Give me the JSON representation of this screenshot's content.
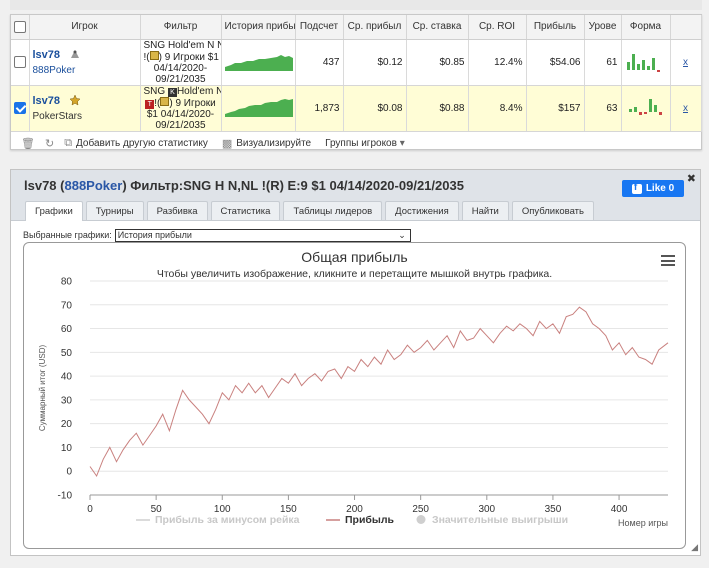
{
  "table": {
    "headers": [
      "Игрок",
      "Фильтр",
      "История прибы",
      "Подсчет",
      "Ср. прибыл",
      "Ср. ставка",
      "Ср. ROI",
      "Прибыль",
      "Урове",
      "Форма"
    ],
    "rows": [
      {
        "player": "lsv78",
        "site": "888Poker",
        "filter": [
          "SNG Hold'em N NL",
          "!(",
          ") 9 Игроки $1",
          "04/14/2020-",
          "09/21/2035"
        ],
        "count": "437",
        "avg_profit": "$0.12",
        "avg_stake": "$0.85",
        "roi": "12.4%",
        "profit": "$54.06",
        "level": "61",
        "link": "x",
        "checked": false
      },
      {
        "player": "lsv78",
        "site": "PokerStars",
        "filter": [
          "SNG ",
          "Hold'em N NL",
          "!(",
          ") 9 Игроки",
          "$1 04/14/2020-",
          "09/21/2035"
        ],
        "count": "1,873",
        "avg_profit": "$0.08",
        "avg_stake": "$0.88",
        "roi": "8.4%",
        "profit": "$157",
        "level": "63",
        "link": "x",
        "checked": true
      }
    ]
  },
  "toolbar": {
    "add_stats": "Добавить другую статистику",
    "visualize": "Визуализируйте",
    "groups": "Группы игроков"
  },
  "graph_panel": {
    "title_player": "lsv78 (",
    "title_site": "888Poker",
    "title_rest": ") Фильтр:SNG H N,NL !(R) E:9 $1 04/14/2020-09/21/2035",
    "like_label": "Like 0",
    "tabs": [
      "Графики",
      "Турниры",
      "Разбивка",
      "Статистика",
      "Таблицы лидеров",
      "Достижения",
      "Найти",
      "Опубликовать"
    ],
    "select_label": "Выбранные графики:",
    "select_value": "История прибыли"
  },
  "colors": {
    "profit_line": "#c9817f",
    "accent_blue": "#1a4f9c",
    "row_highlight": "#fffdd6",
    "sparkline": "#4caf50"
  },
  "icons": [
    "delete-icon",
    "refresh-icon",
    "add-icon",
    "visualize-icon",
    "chevron-down-icon",
    "menu-icon",
    "close-icon",
    "facebook-icon"
  ],
  "chart_data": {
    "type": "line",
    "title": "Общая прибыль",
    "subtitle": "Чтобы увеличить изображение, кликните и перетащите мышкой внутрь графика.",
    "ylabel": "Суммарный итог (USD)",
    "xlabel": "Номер игры",
    "xlim": [
      0,
      437
    ],
    "ylim": [
      -10,
      80
    ],
    "x_ticks": [
      0,
      50,
      100,
      150,
      200,
      250,
      300,
      350,
      400
    ],
    "y_ticks": [
      -10,
      0,
      10,
      20,
      30,
      40,
      50,
      60,
      70,
      80
    ],
    "legend": [
      "Прибыль за минусом рейка",
      "Прибыль",
      "Значительные выигрыши"
    ],
    "legend_placement": "bottom",
    "series": [
      {
        "name": "Прибыль",
        "x": [
          0,
          5,
          10,
          15,
          20,
          25,
          30,
          35,
          40,
          45,
          50,
          55,
          60,
          65,
          70,
          75,
          80,
          85,
          90,
          95,
          100,
          105,
          110,
          115,
          120,
          125,
          130,
          135,
          140,
          145,
          150,
          155,
          160,
          165,
          170,
          175,
          180,
          185,
          190,
          195,
          200,
          205,
          210,
          215,
          220,
          225,
          230,
          235,
          240,
          245,
          250,
          255,
          260,
          265,
          270,
          275,
          280,
          285,
          290,
          295,
          300,
          305,
          310,
          315,
          320,
          325,
          330,
          335,
          340,
          345,
          350,
          355,
          360,
          365,
          370,
          375,
          380,
          385,
          390,
          395,
          400,
          405,
          410,
          415,
          420,
          425,
          430,
          437
        ],
        "y": [
          2,
          -2,
          5,
          10,
          4,
          9,
          13,
          16,
          11,
          15,
          19,
          24,
          17,
          26,
          34,
          30,
          27,
          24,
          20,
          26,
          33,
          30,
          36,
          33,
          37,
          33,
          36,
          31,
          35,
          39,
          37,
          41,
          36,
          39,
          41,
          38,
          42,
          43,
          39,
          44,
          42,
          47,
          44,
          48,
          45,
          51,
          47,
          49,
          53,
          50,
          52,
          55,
          51,
          54,
          57,
          52,
          59,
          55,
          56,
          60,
          57,
          54,
          58,
          61,
          59,
          62,
          60,
          57,
          63,
          60,
          62,
          58,
          65,
          66,
          69,
          67,
          62,
          60,
          57,
          51,
          54,
          49,
          52,
          48,
          47,
          45,
          51,
          54
        ]
      }
    ]
  }
}
